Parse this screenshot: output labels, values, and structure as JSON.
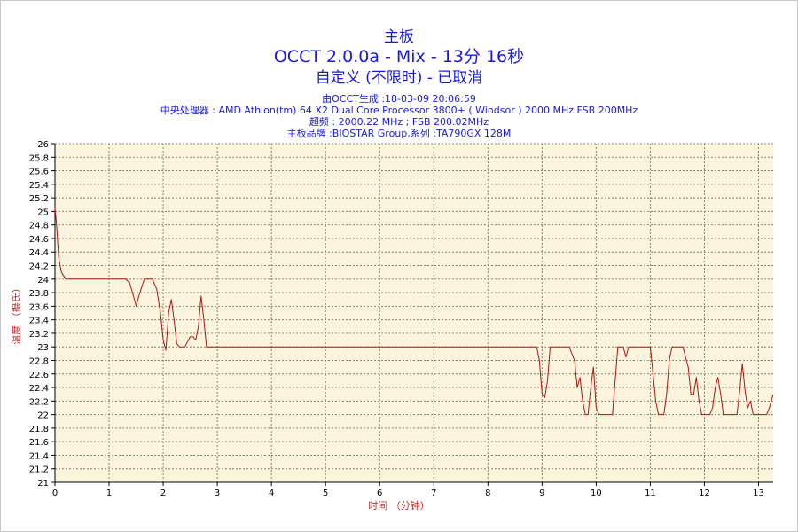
{
  "header": {
    "line1": "主板",
    "line2": "OCCT 2.0.0a - Mix - 13分 16秒",
    "line3": "自定义 (不限时) - 已取消"
  },
  "info": [
    "由OCCT生成 :18-03-09 20:06:59",
    "中央处理器 : AMD Athlon(tm) 64 X2 Dual Core Processor 3800+ ( Windsor ) 2000 MHz FSB 200MHz",
    "超频 : 2000.22 MHz ; FSB 200.02MHz",
    "主板品牌 :BIOSTAR Group,系列 :TA790GX 128M"
  ],
  "colors": {
    "title": "#1a1ad4",
    "axis_label": "#c0282a",
    "plot_bg": "#fcf4dc",
    "series": "#a81818"
  },
  "chart_data": {
    "type": "line",
    "xlabel": "时间 （分钟）",
    "ylabel": "温度 （摄氏）",
    "xlim": [
      0,
      13.27
    ],
    "ylim": [
      21,
      26
    ],
    "xticks": [
      0,
      1,
      2,
      3,
      4,
      5,
      6,
      7,
      8,
      9,
      10,
      11,
      12,
      13
    ],
    "yticks": [
      21,
      21.2,
      21.4,
      21.6,
      21.8,
      22,
      22.2,
      22.4,
      22.6,
      22.8,
      23,
      23.2,
      23.4,
      23.6,
      23.8,
      24,
      24.2,
      24.4,
      24.6,
      24.8,
      25,
      25.2,
      25.4,
      25.6,
      25.8,
      26
    ],
    "grid": true,
    "series": [
      {
        "x": [
          0,
          0.03,
          0.07,
          0.12,
          0.2,
          0.3,
          1.3,
          1.38,
          1.45,
          1.5,
          1.55,
          1.65,
          1.8,
          1.88,
          1.95,
          2.0,
          2.05,
          2.1,
          2.15,
          2.2,
          2.25,
          2.3,
          2.4,
          2.5,
          2.55,
          2.6,
          2.65,
          2.7,
          2.75,
          2.8,
          2.85,
          2.9,
          3.0,
          5.0,
          7.0,
          8.0,
          8.9,
          8.95,
          9.0,
          9.05,
          9.1,
          9.15,
          9.25,
          9.5,
          9.6,
          9.65,
          9.7,
          9.75,
          9.8,
          9.85,
          9.9,
          9.95,
          10.0,
          10.05,
          10.1,
          10.2,
          10.3,
          10.35,
          10.4,
          10.45,
          10.5,
          10.55,
          10.6,
          10.65,
          10.7,
          10.75,
          10.8,
          11.0,
          11.05,
          11.1,
          11.15,
          11.2,
          11.25,
          11.3,
          11.35,
          11.4,
          11.45,
          11.5,
          11.6,
          11.7,
          11.75,
          11.8,
          11.85,
          11.9,
          11.95,
          12.0,
          12.05,
          12.1,
          12.15,
          12.2,
          12.25,
          12.3,
          12.35,
          12.4,
          12.45,
          12.5,
          12.55,
          12.6,
          12.65,
          12.7,
          12.75,
          12.8,
          12.85,
          12.9,
          12.95,
          13.0,
          13.05,
          13.1,
          13.15,
          13.2,
          13.27
        ],
        "y": [
          25.05,
          24.8,
          24.3,
          24.1,
          24.0,
          24.0,
          24.0,
          23.95,
          23.75,
          23.6,
          23.75,
          24.0,
          24.0,
          23.85,
          23.5,
          23.1,
          22.95,
          23.5,
          23.7,
          23.4,
          23.05,
          23.0,
          23.0,
          23.15,
          23.15,
          23.1,
          23.3,
          23.75,
          23.4,
          23.0,
          23.0,
          23.0,
          23.0,
          23.0,
          23.0,
          23.0,
          23.0,
          22.8,
          22.3,
          22.25,
          22.5,
          23.0,
          23.0,
          23.0,
          22.8,
          22.4,
          22.55,
          22.2,
          22.0,
          22.0,
          22.4,
          22.7,
          22.1,
          22.0,
          22.0,
          22.0,
          22.0,
          22.5,
          23.0,
          23.0,
          23.0,
          22.85,
          23.0,
          23.0,
          23.0,
          23.0,
          23.0,
          23.0,
          22.6,
          22.2,
          22.0,
          22.0,
          22.0,
          22.3,
          22.8,
          23.0,
          23.0,
          23.0,
          23.0,
          22.7,
          22.3,
          22.3,
          22.55,
          22.2,
          22.0,
          22.0,
          22.0,
          22.0,
          22.1,
          22.4,
          22.55,
          22.3,
          22.0,
          22.0,
          22.0,
          22.0,
          22.0,
          22.0,
          22.35,
          22.75,
          22.35,
          22.1,
          22.2,
          22.0,
          22.0,
          22.0,
          22.0,
          22.0,
          22.0,
          22.1,
          22.3
        ]
      }
    ]
  }
}
